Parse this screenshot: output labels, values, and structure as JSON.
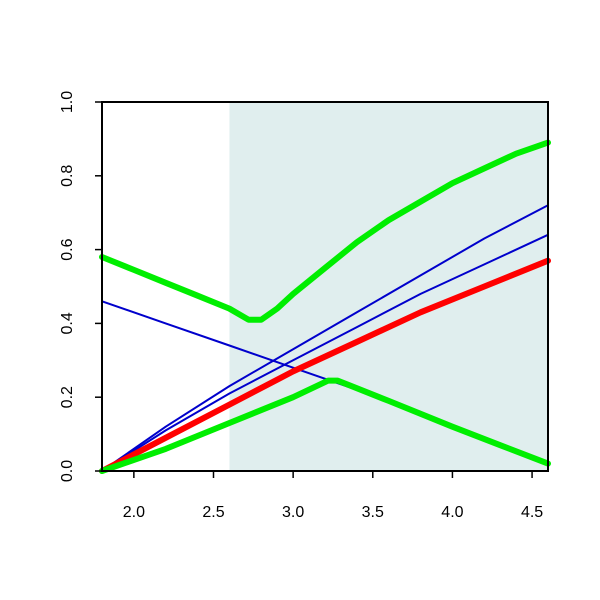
{
  "chart_data": {
    "type": "line",
    "title": "",
    "xlabel": "",
    "ylabel": "",
    "xlim": [
      1.8,
      4.6
    ],
    "ylim": [
      0.0,
      1.0
    ],
    "x_ticks": [
      2.0,
      2.5,
      3.0,
      3.5,
      4.0,
      4.5
    ],
    "x_tick_labels": [
      "2.0",
      "2.5",
      "3.0",
      "3.5",
      "4.0",
      "4.5"
    ],
    "y_ticks": [
      0.0,
      0.2,
      0.4,
      0.6,
      0.8,
      1.0
    ],
    "y_tick_labels": [
      "0.0",
      "0.2",
      "0.4",
      "0.6",
      "0.8",
      "1.0"
    ],
    "grid": false,
    "shaded_region": {
      "x_from": 2.6,
      "x_to": 4.6,
      "color": "#e0eeee"
    },
    "series": [
      {
        "color": "#0000cc",
        "width": "thin",
        "points": [
          [
            1.8,
            0.46
          ],
          [
            2.2,
            0.4
          ],
          [
            2.6,
            0.34
          ],
          [
            3.0,
            0.28
          ],
          [
            3.4,
            0.22
          ],
          [
            3.8,
            0.16
          ],
          [
            4.2,
            0.09
          ],
          [
            4.6,
            0.02
          ]
        ]
      },
      {
        "color": "#0000cc",
        "width": "thin",
        "points": [
          [
            1.8,
            0.0
          ],
          [
            2.2,
            0.12
          ],
          [
            2.6,
            0.23
          ],
          [
            3.0,
            0.33
          ],
          [
            3.4,
            0.43
          ],
          [
            3.8,
            0.53
          ],
          [
            4.2,
            0.63
          ],
          [
            4.6,
            0.72
          ]
        ]
      },
      {
        "color": "#0000cc",
        "width": "thin",
        "points": [
          [
            1.8,
            0.0
          ],
          [
            2.2,
            0.11
          ],
          [
            2.6,
            0.21
          ],
          [
            3.0,
            0.3
          ],
          [
            3.4,
            0.39
          ],
          [
            3.8,
            0.48
          ],
          [
            4.2,
            0.56
          ],
          [
            4.6,
            0.64
          ]
        ]
      },
      {
        "color": "#ff0000",
        "width": "thick",
        "points": [
          [
            1.8,
            0.0
          ],
          [
            2.2,
            0.09
          ],
          [
            2.6,
            0.18
          ],
          [
            3.0,
            0.27
          ],
          [
            3.4,
            0.35
          ],
          [
            3.8,
            0.43
          ],
          [
            4.2,
            0.5
          ],
          [
            4.6,
            0.57
          ]
        ]
      },
      {
        "color": "#00ee00",
        "width": "thick",
        "points": [
          [
            1.8,
            0.58
          ],
          [
            2.0,
            0.545
          ],
          [
            2.2,
            0.51
          ],
          [
            2.4,
            0.475
          ],
          [
            2.6,
            0.44
          ],
          [
            2.72,
            0.41
          ],
          [
            2.8,
            0.41
          ],
          [
            2.9,
            0.44
          ],
          [
            3.0,
            0.48
          ],
          [
            3.2,
            0.55
          ],
          [
            3.4,
            0.62
          ],
          [
            3.6,
            0.68
          ],
          [
            3.8,
            0.73
          ],
          [
            4.0,
            0.78
          ],
          [
            4.2,
            0.82
          ],
          [
            4.4,
            0.86
          ],
          [
            4.6,
            0.89
          ]
        ]
      },
      {
        "color": "#00ee00",
        "width": "thick",
        "points": [
          [
            1.8,
            0.0
          ],
          [
            2.2,
            0.06
          ],
          [
            2.6,
            0.13
          ],
          [
            3.0,
            0.2
          ],
          [
            3.22,
            0.245
          ],
          [
            3.28,
            0.245
          ],
          [
            3.6,
            0.19
          ],
          [
            4.0,
            0.12
          ],
          [
            4.3,
            0.07
          ],
          [
            4.6,
            0.02
          ]
        ]
      }
    ]
  }
}
